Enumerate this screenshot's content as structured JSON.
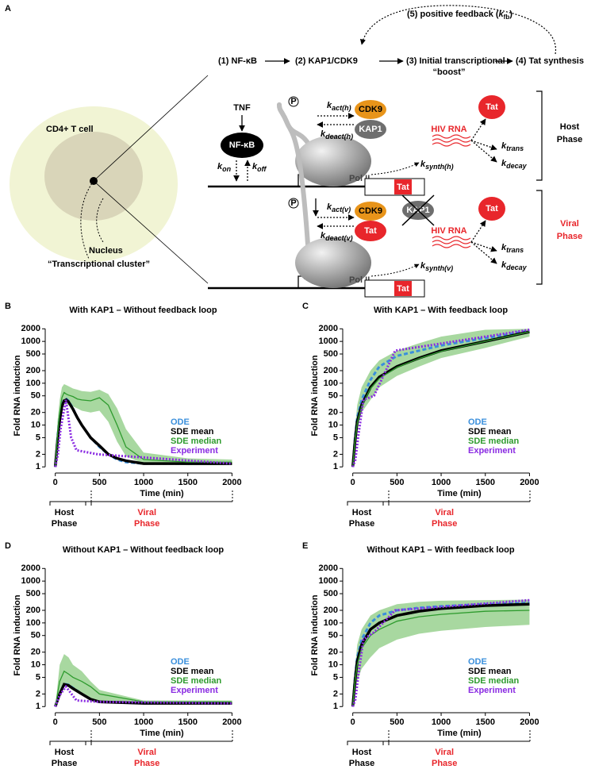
{
  "diagram": {
    "panel": "A",
    "feedback": [
      "(5) positive feedback (",
      "k",
      "fb",
      ")"
    ],
    "steps": [
      "(1) NF-κB",
      "(2) KAP1/CDK9",
      "(3) Initial transcriptional",
      "“boost”",
      "(4) Tat synthesis"
    ],
    "cell": "CD4+ T cell",
    "nucleus": "Nucleus",
    "cluster": "“Transcriptional cluster”",
    "host": {
      "tnf": "TNF",
      "nfkb": "NF-κB",
      "k_on": [
        "k",
        "on"
      ],
      "k_off": [
        "k",
        "off"
      ],
      "phospho": "P",
      "k_act": [
        "k",
        "act(h)"
      ],
      "k_deact": [
        "k",
        "deact(h)"
      ],
      "cdk9": "CDK9",
      "kap1": "KAP1",
      "pol": "Pol II",
      "rna": "HIV RNA",
      "tat_protein": "Tat",
      "k_trans": [
        "k",
        "trans"
      ],
      "k_decay": [
        "k",
        "decay"
      ],
      "k_synth": [
        "k",
        "synth(h)"
      ],
      "tat_gene": "Tat",
      "phase": [
        "Host",
        "Phase"
      ]
    },
    "viral": {
      "phospho": "P",
      "k_act": [
        "k",
        "act(v)"
      ],
      "k_deact": [
        "k",
        "deact(v)"
      ],
      "cdk9": "CDK9",
      "tat_bound": "Tat",
      "kap1": "KAP1",
      "pol": "Pol II",
      "rna": "HIV RNA",
      "tat_protein": "Tat",
      "k_trans": [
        "k",
        "trans"
      ],
      "k_decay": [
        "k",
        "decay"
      ],
      "k_synth": [
        "k",
        "synth(v)"
      ],
      "tat_gene": "Tat",
      "phase": [
        "Viral",
        "Phase"
      ]
    }
  },
  "chart_data": [
    {
      "type": "line",
      "panel": "B",
      "title": "With KAP1 – Without feedback loop",
      "x_label": "Time (min)",
      "y_label": "Fold RNA induction",
      "log": true,
      "ylim": [
        0.85,
        3000
      ],
      "yticks": [
        1,
        2,
        5,
        10,
        20,
        50,
        100,
        200,
        500,
        1000,
        2000
      ],
      "xlim": [
        -60,
        2050
      ],
      "xticks": [
        0,
        500,
        1000,
        1500,
        2000
      ],
      "legend": "right",
      "phases": [
        {
          "lines": [
            "Host",
            "Phase"
          ],
          "color": "#000000"
        },
        {
          "lines": [
            "Viral",
            "Phase"
          ],
          "color": "#e8262b"
        }
      ],
      "band": {
        "color": "#a8d8a0",
        "x": [
          0,
          25,
          50,
          75,
          100,
          125,
          150,
          200,
          250,
          300,
          400,
          500,
          600,
          700,
          800,
          1000,
          1500,
          2000
        ],
        "lower": [
          1,
          3,
          10,
          25,
          35,
          32,
          30,
          28,
          25,
          22,
          20,
          22,
          12,
          4,
          1.8,
          1.2,
          1.1,
          1.1
        ],
        "upper": [
          1,
          12,
          40,
          80,
          95,
          90,
          85,
          75,
          70,
          65,
          62,
          70,
          55,
          25,
          8,
          2.2,
          1.6,
          1.5
        ]
      },
      "series": [
        {
          "name": "ODE",
          "color": "#3a8fdc",
          "style": "dashed",
          "x": [
            0,
            25,
            50,
            75,
            100,
            125,
            150,
            200,
            250,
            300,
            400,
            500,
            600,
            700,
            800,
            1000,
            1500,
            2000
          ],
          "values": [
            1,
            5,
            15,
            30,
            40,
            42,
            38,
            25,
            15,
            10,
            5,
            3,
            2,
            1.5,
            1.3,
            1.2,
            1.2,
            1.2
          ]
        },
        {
          "name": "SDE mean",
          "color": "#000000",
          "style": "bold",
          "x": [
            0,
            25,
            50,
            75,
            100,
            125,
            150,
            200,
            250,
            300,
            400,
            500,
            600,
            700,
            800,
            1000,
            1500,
            2000
          ],
          "values": [
            1,
            4,
            13,
            28,
            38,
            40,
            36,
            24,
            15,
            10,
            5,
            3.2,
            2,
            1.6,
            1.4,
            1.2,
            1.2,
            1.2
          ]
        },
        {
          "name": "SDE median",
          "color": "#2e9b2e",
          "style": "solid",
          "x": [
            0,
            25,
            50,
            75,
            100,
            125,
            150,
            200,
            250,
            300,
            400,
            500,
            600,
            700,
            800,
            1000,
            1500,
            2000
          ],
          "values": [
            1,
            6,
            20,
            45,
            60,
            55,
            52,
            48,
            42,
            40,
            38,
            45,
            30,
            10,
            3,
            1.5,
            1.3,
            1.3
          ]
        },
        {
          "name": "Experiment",
          "color": "#8a2be2",
          "style": "dotted",
          "x": [
            0,
            30,
            60,
            120,
            180,
            240,
            480,
            2000
          ],
          "values": [
            1,
            2,
            8,
            40,
            5,
            2.5,
            2,
            1.2
          ]
        }
      ]
    },
    {
      "type": "line",
      "panel": "C",
      "title": "With KAP1 – With feedback loop",
      "x_label": "Time (min)",
      "y_label": "Fold RNA induction",
      "log": true,
      "ylim": [
        0.85,
        3000
      ],
      "yticks": [
        1,
        2,
        5,
        10,
        20,
        50,
        100,
        200,
        500,
        1000,
        2000
      ],
      "xlim": [
        -60,
        2050
      ],
      "xticks": [
        0,
        500,
        1000,
        1500,
        2000
      ],
      "legend": "right",
      "phases": [
        {
          "lines": [
            "Host",
            "Phase"
          ],
          "color": "#000000"
        },
        {
          "lines": [
            "Viral",
            "Phase"
          ],
          "color": "#e8262b"
        }
      ],
      "band": {
        "color": "#a8d8a0",
        "x": [
          0,
          25,
          50,
          100,
          200,
          300,
          500,
          750,
          1000,
          1500,
          2000
        ],
        "lower": [
          1,
          2,
          8,
          20,
          40,
          80,
          150,
          250,
          400,
          700,
          1300
        ],
        "upper": [
          1,
          8,
          30,
          80,
          200,
          350,
          600,
          900,
          1300,
          1900,
          2000
        ]
      },
      "series": [
        {
          "name": "ODE",
          "color": "#3a8fdc",
          "style": "dashed",
          "x": [
            0,
            25,
            50,
            100,
            200,
            300,
            500,
            750,
            1000,
            1500,
            2000
          ],
          "values": [
            1,
            5,
            15,
            40,
            120,
            250,
            450,
            600,
            800,
            1200,
            1800
          ]
        },
        {
          "name": "SDE mean",
          "color": "#000000",
          "style": "bold",
          "x": [
            0,
            25,
            50,
            100,
            200,
            300,
            500,
            750,
            1000,
            1500,
            2000
          ],
          "values": [
            1,
            4,
            12,
            30,
            80,
            140,
            250,
            400,
            600,
            1000,
            1700
          ]
        },
        {
          "name": "SDE median",
          "color": "#2e9b2e",
          "style": "solid",
          "x": [
            0,
            25,
            50,
            100,
            200,
            300,
            500,
            750,
            1000,
            1500,
            2000
          ],
          "values": [
            1,
            4,
            11,
            28,
            75,
            130,
            240,
            390,
            580,
            1000,
            1700
          ]
        },
        {
          "name": "Experiment",
          "color": "#8a2be2",
          "style": "dotted",
          "x": [
            0,
            30,
            60,
            120,
            240,
            480,
            2000
          ],
          "values": [
            1,
            1.5,
            5,
            40,
            50,
            600,
            1900
          ]
        }
      ]
    },
    {
      "type": "line",
      "panel": "D",
      "title": "Without KAP1 – Without feedback loop",
      "x_label": "Time (min)",
      "y_label": "Fold RNA induction",
      "log": true,
      "ylim": [
        0.85,
        3000
      ],
      "yticks": [
        1,
        2,
        5,
        10,
        20,
        50,
        100,
        200,
        500,
        1000,
        2000
      ],
      "xlim": [
        -60,
        2050
      ],
      "xticks": [
        0,
        500,
        1000,
        1500,
        2000
      ],
      "legend": "right",
      "phases": [
        {
          "lines": [
            "Host",
            "Phase"
          ],
          "color": "#000000"
        },
        {
          "lines": [
            "Viral",
            "Phase"
          ],
          "color": "#e8262b"
        }
      ],
      "band": {
        "color": "#a8d8a0",
        "x": [
          0,
          50,
          100,
          150,
          200,
          300,
          400,
          500,
          1000,
          1500,
          2000
        ],
        "lower": [
          1,
          2,
          3,
          3,
          2.5,
          2,
          1.5,
          1.3,
          1.2,
          1.2,
          1.2
        ],
        "upper": [
          1,
          10,
          18,
          15,
          10,
          7,
          4,
          2.5,
          1.4,
          1.4,
          1.4
        ]
      },
      "series": [
        {
          "name": "ODE",
          "color": "#3a8fdc",
          "style": "dashed",
          "x": [
            0,
            50,
            100,
            150,
            200,
            300,
            400,
            500,
            1000,
            1500,
            2000
          ],
          "values": [
            1,
            2,
            3.5,
            3.3,
            2.8,
            2,
            1.5,
            1.3,
            1.2,
            1.2,
            1.2
          ]
        },
        {
          "name": "SDE mean",
          "color": "#000000",
          "style": "bold",
          "x": [
            0,
            50,
            100,
            150,
            200,
            300,
            400,
            500,
            1000,
            1500,
            2000
          ],
          "values": [
            1,
            2,
            3.4,
            3.2,
            2.7,
            2,
            1.5,
            1.3,
            1.2,
            1.2,
            1.2
          ]
        },
        {
          "name": "SDE median",
          "color": "#2e9b2e",
          "style": "solid",
          "x": [
            0,
            50,
            100,
            150,
            200,
            300,
            400,
            500,
            1000,
            1500,
            2000
          ],
          "values": [
            1,
            4,
            7,
            6,
            5,
            4,
            3,
            2,
            1.3,
            1.3,
            1.3
          ]
        },
        {
          "name": "Experiment",
          "color": "#8a2be2",
          "style": "dotted",
          "x": [
            0,
            30,
            60,
            120,
            240,
            480,
            2000
          ],
          "values": [
            1,
            1.5,
            2,
            3,
            1.4,
            1.3,
            1.2
          ]
        }
      ]
    },
    {
      "type": "line",
      "panel": "E",
      "title": "Without KAP1 – With feedback loop",
      "x_label": "Time (min)",
      "y_label": "Fold RNA induction",
      "log": true,
      "ylim": [
        0.85,
        3000
      ],
      "yticks": [
        1,
        2,
        5,
        10,
        20,
        50,
        100,
        200,
        500,
        1000,
        2000
      ],
      "xlim": [
        -60,
        2050
      ],
      "xticks": [
        0,
        500,
        1000,
        1500,
        2000
      ],
      "legend": "right",
      "phases": [
        {
          "lines": [
            "Host",
            "Phase"
          ],
          "color": "#000000"
        },
        {
          "lines": [
            "Viral",
            "Phase"
          ],
          "color": "#e8262b"
        }
      ],
      "band": {
        "color": "#a8d8a0",
        "x": [
          0,
          25,
          50,
          100,
          200,
          300,
          500,
          750,
          1000,
          1500,
          2000
        ],
        "lower": [
          1,
          2,
          4,
          8,
          15,
          25,
          40,
          55,
          65,
          80,
          90
        ],
        "upper": [
          1,
          8,
          30,
          70,
          150,
          200,
          280,
          320,
          340,
          350,
          360
        ]
      },
      "series": [
        {
          "name": "ODE",
          "color": "#3a8fdc",
          "style": "dashed",
          "x": [
            0,
            25,
            50,
            100,
            200,
            300,
            500,
            750,
            1000,
            1500,
            2000
          ],
          "values": [
            1,
            5,
            15,
            40,
            100,
            150,
            200,
            230,
            250,
            280,
            300
          ]
        },
        {
          "name": "SDE mean",
          "color": "#000000",
          "style": "bold",
          "x": [
            0,
            25,
            50,
            100,
            200,
            300,
            500,
            750,
            1000,
            1500,
            2000
          ],
          "values": [
            1,
            4,
            12,
            30,
            70,
            100,
            150,
            190,
            220,
            260,
            280
          ]
        },
        {
          "name": "SDE median",
          "color": "#2e9b2e",
          "style": "solid",
          "x": [
            0,
            25,
            50,
            100,
            200,
            300,
            500,
            750,
            1000,
            1500,
            2000
          ],
          "values": [
            1,
            4,
            10,
            25,
            50,
            70,
            110,
            140,
            160,
            190,
            200
          ]
        },
        {
          "name": "Experiment",
          "color": "#8a2be2",
          "style": "dotted",
          "x": [
            0,
            30,
            60,
            120,
            240,
            480,
            2000
          ],
          "values": [
            1,
            1.5,
            5,
            40,
            60,
            200,
            350
          ]
        }
      ]
    }
  ]
}
